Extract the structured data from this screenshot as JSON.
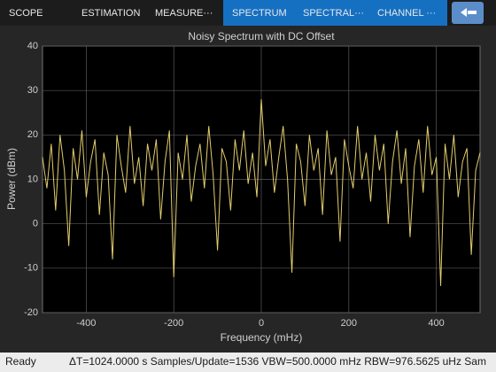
{
  "toolbar": {
    "tabs": [
      "SCOPE",
      "ESTIMATION",
      "MEASURE···",
      "SPECTRUM",
      "SPECTRAL···",
      "CHANNEL ···"
    ]
  },
  "chart_data": {
    "type": "line",
    "title": "Noisy Spectrum with DC Offset",
    "xlabel": "Frequency (mHz)",
    "ylabel": "Power (dBm)",
    "x": [
      -500,
      -490,
      -480,
      -470,
      -460,
      -450,
      -440,
      -430,
      -420,
      -410,
      -400,
      -390,
      -380,
      -370,
      -360,
      -350,
      -340,
      -330,
      -320,
      -310,
      -300,
      -290,
      -280,
      -270,
      -260,
      -250,
      -240,
      -230,
      -220,
      -210,
      -200,
      -190,
      -180,
      -170,
      -160,
      -150,
      -140,
      -130,
      -120,
      -110,
      -100,
      -90,
      -80,
      -70,
      -60,
      -50,
      -40,
      -30,
      -20,
      -10,
      0,
      10,
      20,
      30,
      40,
      50,
      60,
      70,
      80,
      90,
      100,
      110,
      120,
      130,
      140,
      150,
      160,
      170,
      180,
      190,
      200,
      210,
      220,
      230,
      240,
      250,
      260,
      270,
      280,
      290,
      300,
      310,
      320,
      330,
      340,
      350,
      360,
      370,
      380,
      390,
      400,
      410,
      420,
      430,
      440,
      450,
      460,
      470,
      480,
      490,
      500
    ],
    "values": [
      15,
      8,
      18,
      3,
      20,
      12,
      -5,
      17,
      10,
      21,
      6,
      14,
      19,
      2,
      16,
      11,
      -8,
      20,
      13,
      7,
      22,
      9,
      15,
      4,
      18,
      12,
      19,
      1,
      14,
      21,
      -12,
      16,
      10,
      20,
      5,
      13,
      18,
      8,
      22,
      11,
      -6,
      17,
      14,
      3,
      19,
      12,
      21,
      9,
      16,
      6,
      28,
      13,
      19,
      7,
      15,
      22,
      10,
      -11,
      18,
      14,
      4,
      20,
      12,
      17,
      2,
      21,
      11,
      15,
      -4,
      19,
      13,
      8,
      22,
      10,
      16,
      5,
      20,
      12,
      18,
      0,
      14,
      21,
      9,
      17,
      -3,
      13,
      19,
      7,
      22,
      11,
      15,
      -14,
      18,
      10,
      20,
      6,
      14,
      17,
      -7,
      12,
      16
    ],
    "color": "#e3cd6c",
    "xlim": [
      -500,
      500
    ],
    "xticks": [
      -400,
      -200,
      0,
      200,
      400
    ],
    "ylim": [
      -20,
      40
    ],
    "yticks": [
      -20,
      -10,
      0,
      10,
      20,
      30,
      40
    ],
    "grid": true
  },
  "status": {
    "state": "Ready",
    "info": "ΔT=1024.0000 s  Samples/Update=1536  VBW=500.0000 mHz  RBW=976.5625 uHz  Sam"
  }
}
